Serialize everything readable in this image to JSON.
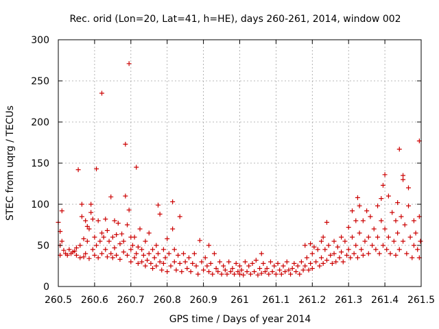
{
  "chart_data": {
    "type": "scatter",
    "title": "Rec. orid (Lon=20, Lat=41, h=HE), days 260-261, 2014, window 002",
    "xlabel": "GPS time / Days of year 2014",
    "ylabel": "STEC from uqrg / TECUs",
    "xlim": [
      260.5,
      261.5
    ],
    "ylim": [
      0,
      300
    ],
    "xticks": [
      260.5,
      260.6,
      260.7,
      260.8,
      260.9,
      261.0,
      261.1,
      261.2,
      261.3,
      261.4,
      261.5
    ],
    "xtick_labels": [
      "260.5",
      "260.6",
      "260.7",
      "260.8",
      "260.9",
      "261",
      "261.1",
      "261.2",
      "261.3",
      "261.4",
      "261.5"
    ],
    "yticks": [
      0,
      50,
      100,
      150,
      200,
      250,
      300
    ],
    "ytick_labels": [
      "0",
      "50",
      "100",
      "150",
      "200",
      "250",
      "300"
    ],
    "grid": true,
    "marker": "plus",
    "color": "#cc0000",
    "series": [
      {
        "name": "STEC",
        "points": [
          [
            260.5,
            78
          ],
          [
            260.505,
            67
          ],
          [
            260.505,
            50
          ],
          [
            260.505,
            38
          ],
          [
            260.51,
            55
          ],
          [
            260.51,
            92
          ],
          [
            260.515,
            44
          ],
          [
            260.52,
            40
          ],
          [
            260.525,
            38
          ],
          [
            260.53,
            45
          ],
          [
            260.535,
            40
          ],
          [
            260.54,
            42
          ],
          [
            260.545,
            43
          ],
          [
            260.55,
            38
          ],
          [
            260.55,
            47
          ],
          [
            260.555,
            142
          ],
          [
            260.56,
            50
          ],
          [
            260.56,
            35
          ],
          [
            260.565,
            100
          ],
          [
            260.565,
            85
          ],
          [
            260.57,
            58
          ],
          [
            260.57,
            36
          ],
          [
            260.575,
            80
          ],
          [
            260.575,
            40
          ],
          [
            260.58,
            73
          ],
          [
            260.58,
            55
          ],
          [
            260.585,
            70
          ],
          [
            260.585,
            34
          ],
          [
            260.59,
            100
          ],
          [
            260.59,
            90
          ],
          [
            260.595,
            82
          ],
          [
            260.595,
            45
          ],
          [
            260.6,
            60
          ],
          [
            260.6,
            38
          ],
          [
            260.605,
            143
          ],
          [
            260.605,
            50
          ],
          [
            260.61,
            80
          ],
          [
            260.61,
            35
          ],
          [
            260.615,
            55
          ],
          [
            260.62,
            235
          ],
          [
            260.62,
            65
          ],
          [
            260.62,
            40
          ],
          [
            260.625,
            60
          ],
          [
            260.63,
            82
          ],
          [
            260.63,
            45
          ],
          [
            260.635,
            68
          ],
          [
            260.635,
            36
          ],
          [
            260.64,
            55
          ],
          [
            260.645,
            109
          ],
          [
            260.645,
            40
          ],
          [
            260.65,
            60
          ],
          [
            260.65,
            35
          ],
          [
            260.655,
            80
          ],
          [
            260.655,
            47
          ],
          [
            260.66,
            63
          ],
          [
            260.66,
            38
          ],
          [
            260.665,
            77
          ],
          [
            260.67,
            52
          ],
          [
            260.67,
            33
          ],
          [
            260.675,
            64
          ],
          [
            260.68,
            55
          ],
          [
            260.68,
            42
          ],
          [
            260.685,
            173
          ],
          [
            260.685,
            110
          ],
          [
            260.69,
            75
          ],
          [
            260.69,
            38
          ],
          [
            260.695,
            271
          ],
          [
            260.695,
            93
          ],
          [
            260.7,
            60
          ],
          [
            260.7,
            45
          ],
          [
            260.7,
            30
          ],
          [
            260.705,
            50
          ],
          [
            260.71,
            60
          ],
          [
            260.71,
            35
          ],
          [
            260.715,
            145
          ],
          [
            260.715,
            40
          ],
          [
            260.72,
            48
          ],
          [
            260.72,
            28
          ],
          [
            260.725,
            70
          ],
          [
            260.73,
            45
          ],
          [
            260.73,
            30
          ],
          [
            260.735,
            38
          ],
          [
            260.74,
            55
          ],
          [
            260.74,
            25
          ],
          [
            260.745,
            32
          ],
          [
            260.75,
            65
          ],
          [
            260.75,
            40
          ],
          [
            260.755,
            28
          ],
          [
            260.76,
            45
          ],
          [
            260.76,
            22
          ],
          [
            260.765,
            35
          ],
          [
            260.77,
            50
          ],
          [
            260.77,
            25
          ],
          [
            260.775,
            99
          ],
          [
            260.775,
            40
          ],
          [
            260.78,
            88
          ],
          [
            260.78,
            30
          ],
          [
            260.785,
            20
          ],
          [
            260.79,
            45
          ],
          [
            260.79,
            28
          ],
          [
            260.795,
            35
          ],
          [
            260.8,
            58
          ],
          [
            260.8,
            18
          ],
          [
            260.805,
            40
          ],
          [
            260.81,
            25
          ],
          [
            260.815,
            103
          ],
          [
            260.815,
            70
          ],
          [
            260.82,
            45
          ],
          [
            260.82,
            30
          ],
          [
            260.825,
            20
          ],
          [
            260.83,
            38
          ],
          [
            260.835,
            85
          ],
          [
            260.835,
            28
          ],
          [
            260.84,
            18
          ],
          [
            260.845,
            40
          ],
          [
            260.85,
            30
          ],
          [
            260.855,
            22
          ],
          [
            260.86,
            35
          ],
          [
            260.865,
            18
          ],
          [
            260.87,
            28
          ],
          [
            260.875,
            40
          ],
          [
            260.88,
            25
          ],
          [
            260.885,
            15
          ],
          [
            260.89,
            56
          ],
          [
            260.895,
            30
          ],
          [
            260.9,
            20
          ],
          [
            260.905,
            35
          ],
          [
            260.91,
            25
          ],
          [
            260.915,
            50
          ],
          [
            260.915,
            18
          ],
          [
            260.92,
            28
          ],
          [
            260.925,
            15
          ],
          [
            260.93,
            40
          ],
          [
            260.935,
            22
          ],
          [
            260.94,
            18
          ],
          [
            260.945,
            30
          ],
          [
            260.95,
            15
          ],
          [
            260.955,
            25
          ],
          [
            260.96,
            20
          ],
          [
            260.965,
            15
          ],
          [
            260.97,
            30
          ],
          [
            260.975,
            18
          ],
          [
            260.98,
            22
          ],
          [
            260.985,
            15
          ],
          [
            260.99,
            28
          ],
          [
            260.995,
            18
          ],
          [
            261.0,
            15
          ],
          [
            261.0,
            25
          ],
          [
            261.005,
            20
          ],
          [
            261.01,
            14
          ],
          [
            261.015,
            30
          ],
          [
            261.02,
            18
          ],
          [
            261.025,
            25
          ],
          [
            261.03,
            15
          ],
          [
            261.035,
            28
          ],
          [
            261.04,
            18
          ],
          [
            261.045,
            32
          ],
          [
            261.05,
            14
          ],
          [
            261.055,
            22
          ],
          [
            261.06,
            40
          ],
          [
            261.06,
            16
          ],
          [
            261.065,
            28
          ],
          [
            261.07,
            18
          ],
          [
            261.075,
            22
          ],
          [
            261.08,
            15
          ],
          [
            261.085,
            30
          ],
          [
            261.09,
            18
          ],
          [
            261.095,
            25
          ],
          [
            261.1,
            15
          ],
          [
            261.105,
            28
          ],
          [
            261.11,
            20
          ],
          [
            261.115,
            15
          ],
          [
            261.12,
            25
          ],
          [
            261.125,
            18
          ],
          [
            261.13,
            30
          ],
          [
            261.135,
            20
          ],
          [
            261.14,
            15
          ],
          [
            261.145,
            22
          ],
          [
            261.15,
            28
          ],
          [
            261.155,
            18
          ],
          [
            261.16,
            25
          ],
          [
            261.165,
            15
          ],
          [
            261.17,
            30
          ],
          [
            261.175,
            20
          ],
          [
            261.18,
            50
          ],
          [
            261.18,
            25
          ],
          [
            261.185,
            35
          ],
          [
            261.19,
            20
          ],
          [
            261.195,
            52
          ],
          [
            261.195,
            28
          ],
          [
            261.2,
            40
          ],
          [
            261.2,
            22
          ],
          [
            261.205,
            48
          ],
          [
            261.21,
            30
          ],
          [
            261.215,
            45
          ],
          [
            261.22,
            25
          ],
          [
            261.225,
            55
          ],
          [
            261.225,
            35
          ],
          [
            261.23,
            60
          ],
          [
            261.23,
            28
          ],
          [
            261.235,
            45
          ],
          [
            261.24,
            78
          ],
          [
            261.24,
            32
          ],
          [
            261.245,
            50
          ],
          [
            261.25,
            38
          ],
          [
            261.255,
            28
          ],
          [
            261.26,
            55
          ],
          [
            261.26,
            40
          ],
          [
            261.265,
            30
          ],
          [
            261.27,
            48
          ],
          [
            261.275,
            35
          ],
          [
            261.28,
            60
          ],
          [
            261.28,
            42
          ],
          [
            261.285,
            30
          ],
          [
            261.29,
            55
          ],
          [
            261.295,
            38
          ],
          [
            261.3,
            72
          ],
          [
            261.3,
            45
          ],
          [
            261.305,
            35
          ],
          [
            261.31,
            92
          ],
          [
            261.31,
            60
          ],
          [
            261.315,
            40
          ],
          [
            261.32,
            80
          ],
          [
            261.32,
            50
          ],
          [
            261.325,
            108
          ],
          [
            261.325,
            35
          ],
          [
            261.33,
            98
          ],
          [
            261.33,
            65
          ],
          [
            261.335,
            45
          ],
          [
            261.34,
            80
          ],
          [
            261.34,
            38
          ],
          [
            261.345,
            55
          ],
          [
            261.35,
            92
          ],
          [
            261.355,
            60
          ],
          [
            261.355,
            40
          ],
          [
            261.36,
            85
          ],
          [
            261.365,
            50
          ],
          [
            261.37,
            70
          ],
          [
            261.375,
            45
          ],
          [
            261.38,
            98
          ],
          [
            261.38,
            60
          ],
          [
            261.385,
            40
          ],
          [
            261.39,
            107
          ],
          [
            261.39,
            80
          ],
          [
            261.395,
            123
          ],
          [
            261.395,
            50
          ],
          [
            261.4,
            136
          ],
          [
            261.4,
            70
          ],
          [
            261.405,
            45
          ],
          [
            261.41,
            110
          ],
          [
            261.41,
            60
          ],
          [
            261.415,
            40
          ],
          [
            261.42,
            90
          ],
          [
            261.425,
            55
          ],
          [
            261.43,
            80
          ],
          [
            261.43,
            38
          ],
          [
            261.435,
            102
          ],
          [
            261.435,
            65
          ],
          [
            261.44,
            167
          ],
          [
            261.44,
            45
          ],
          [
            261.445,
            85
          ],
          [
            261.45,
            135
          ],
          [
            261.45,
            130
          ],
          [
            261.45,
            55
          ],
          [
            261.455,
            75
          ],
          [
            261.46,
            40
          ],
          [
            261.465,
            120
          ],
          [
            261.465,
            98
          ],
          [
            261.47,
            60
          ],
          [
            261.475,
            35
          ],
          [
            261.48,
            80
          ],
          [
            261.48,
            50
          ],
          [
            261.485,
            65
          ],
          [
            261.49,
            45
          ],
          [
            261.495,
            177
          ],
          [
            261.495,
            85
          ],
          [
            261.495,
            35
          ],
          [
            261.498,
            55
          ]
        ]
      }
    ]
  }
}
